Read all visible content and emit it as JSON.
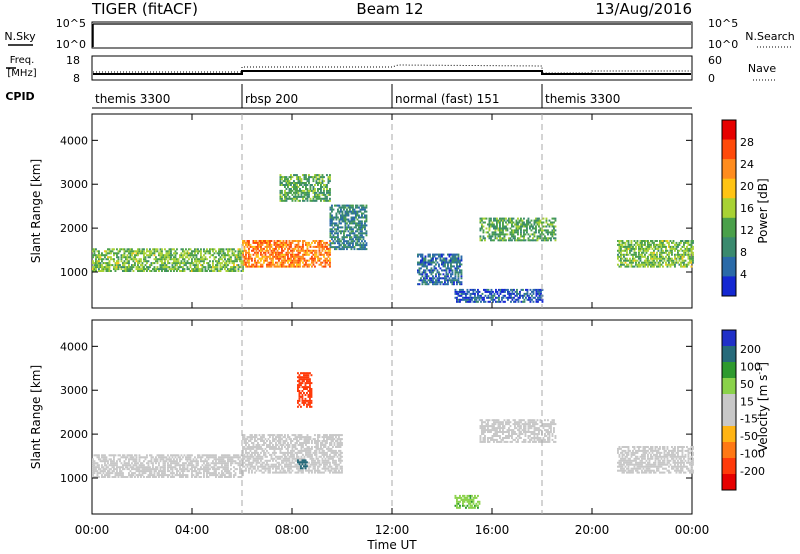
{
  "header": {
    "station": "TIGER (fitACF)",
    "beam": "Beam 12",
    "date": "13/Aug/2016"
  },
  "aux": {
    "nsky_label": "N.Sky",
    "nsky_ticks": [
      "10^5",
      "10^0"
    ],
    "nsearch_label": "N.Search",
    "nsearch_ticks": [
      "10^5",
      "10^0"
    ],
    "freq_label": "Freq.",
    "freq_unit": "[MHz]",
    "freq_ticks": [
      "18",
      "8"
    ],
    "nave_label": "Nave",
    "nave_ticks": [
      "60",
      "0"
    ],
    "cpid_label": "CPID",
    "cpid_segments": [
      {
        "start": 0,
        "end": 6,
        "label": "themis 3300"
      },
      {
        "start": 6,
        "end": 12,
        "label": "rbsp 200"
      },
      {
        "start": 12,
        "end": 18,
        "label": "normal (fast) 151"
      },
      {
        "start": 18,
        "end": 24,
        "label": "themis 3300"
      }
    ]
  },
  "x_axis": {
    "label": "Time UT",
    "ticks": [
      {
        "h": 0,
        "label": "00:00"
      },
      {
        "h": 4,
        "label": "04:00"
      },
      {
        "h": 8,
        "label": "08:00"
      },
      {
        "h": 12,
        "label": "12:00"
      },
      {
        "h": 16,
        "label": "16:00"
      },
      {
        "h": 20,
        "label": "20:00"
      },
      {
        "h": 24,
        "label": "00:00"
      }
    ]
  },
  "power_colorbar": {
    "label": "Power [dB]",
    "colors": [
      "#1428d2",
      "#2a6aa8",
      "#3a8a6e",
      "#4aa04a",
      "#a8d234",
      "#ffc414",
      "#ff8c1e",
      "#ff4a0a",
      "#e60000"
    ],
    "ticks": [
      "4",
      "8",
      "12",
      "16",
      "20",
      "24",
      "28"
    ]
  },
  "velocity_colorbar": {
    "label_main": "Velocity",
    "label_unit": "[m s",
    "label_sup": "-1",
    "label_end": "]",
    "colors": [
      "#2030c8",
      "#266a7a",
      "#2e9a2e",
      "#8ad24a",
      "#c8c8c8",
      "#c8c8c8",
      "#ffb414",
      "#ff7814",
      "#ff3a0a",
      "#e60000"
    ],
    "ticks": [
      "200",
      "100",
      "50",
      "15",
      "-15",
      "-50",
      "-100",
      "-200"
    ]
  },
  "chart_data": [
    {
      "type": "heatmap",
      "title": "Power",
      "xlabel": "Time UT",
      "ylabel": "Slant Range [km]",
      "xlim": [
        0,
        24
      ],
      "ylim": [
        180,
        4600
      ],
      "yticks": [
        1000,
        2000,
        3000,
        4000
      ],
      "color_label": "Power [dB]",
      "color_range": [
        0,
        32
      ],
      "grid": false,
      "regions": [
        {
          "t": [
            0.0,
            6.0
          ],
          "range_km": [
            1000,
            1500
          ],
          "value_db": 14
        },
        {
          "t": [
            6.0,
            9.5
          ],
          "range_km": [
            1100,
            1700
          ],
          "value_db": 24
        },
        {
          "t": [
            7.5,
            9.5
          ],
          "range_km": [
            2600,
            3200
          ],
          "value_db": 12
        },
        {
          "t": [
            9.5,
            11.0
          ],
          "range_km": [
            1500,
            2500
          ],
          "value_db": 8
        },
        {
          "t": [
            13.0,
            14.8
          ],
          "range_km": [
            700,
            1400
          ],
          "value_db": 6
        },
        {
          "t": [
            15.5,
            18.5
          ],
          "range_km": [
            1700,
            2200
          ],
          "value_db": 12
        },
        {
          "t": [
            21.0,
            24.0
          ],
          "range_km": [
            1100,
            1700
          ],
          "value_db": 14
        },
        {
          "t": [
            14.5,
            18.0
          ],
          "range_km": [
            300,
            600
          ],
          "value_db": 4
        }
      ]
    },
    {
      "type": "heatmap",
      "title": "Velocity",
      "xlabel": "Time UT",
      "ylabel": "Slant Range [km]",
      "xlim": [
        0,
        24
      ],
      "ylim": [
        180,
        4600
      ],
      "yticks": [
        1000,
        2000,
        3000,
        4000
      ],
      "color_label": "Velocity [m s-1]",
      "color_range": [
        -250,
        250
      ],
      "grid": false,
      "regions": [
        {
          "t": [
            0.0,
            6.0
          ],
          "range_km": [
            1000,
            1500
          ],
          "value_ms": 0
        },
        {
          "t": [
            6.0,
            10.0
          ],
          "range_km": [
            1100,
            2000
          ],
          "value_ms": 0
        },
        {
          "t": [
            8.2,
            8.8
          ],
          "range_km": [
            2600,
            3400
          ],
          "value_ms": -150
        },
        {
          "t": [
            8.2,
            8.6
          ],
          "range_km": [
            1200,
            1400
          ],
          "value_ms": 150
        },
        {
          "t": [
            15.5,
            18.5
          ],
          "range_km": [
            1800,
            2300
          ],
          "value_ms": 0
        },
        {
          "t": [
            21.0,
            24.0
          ],
          "range_km": [
            1100,
            1700
          ],
          "value_ms": 0
        },
        {
          "t": [
            14.5,
            15.5
          ],
          "range_km": [
            300,
            600
          ],
          "value_ms": 40
        }
      ]
    }
  ]
}
